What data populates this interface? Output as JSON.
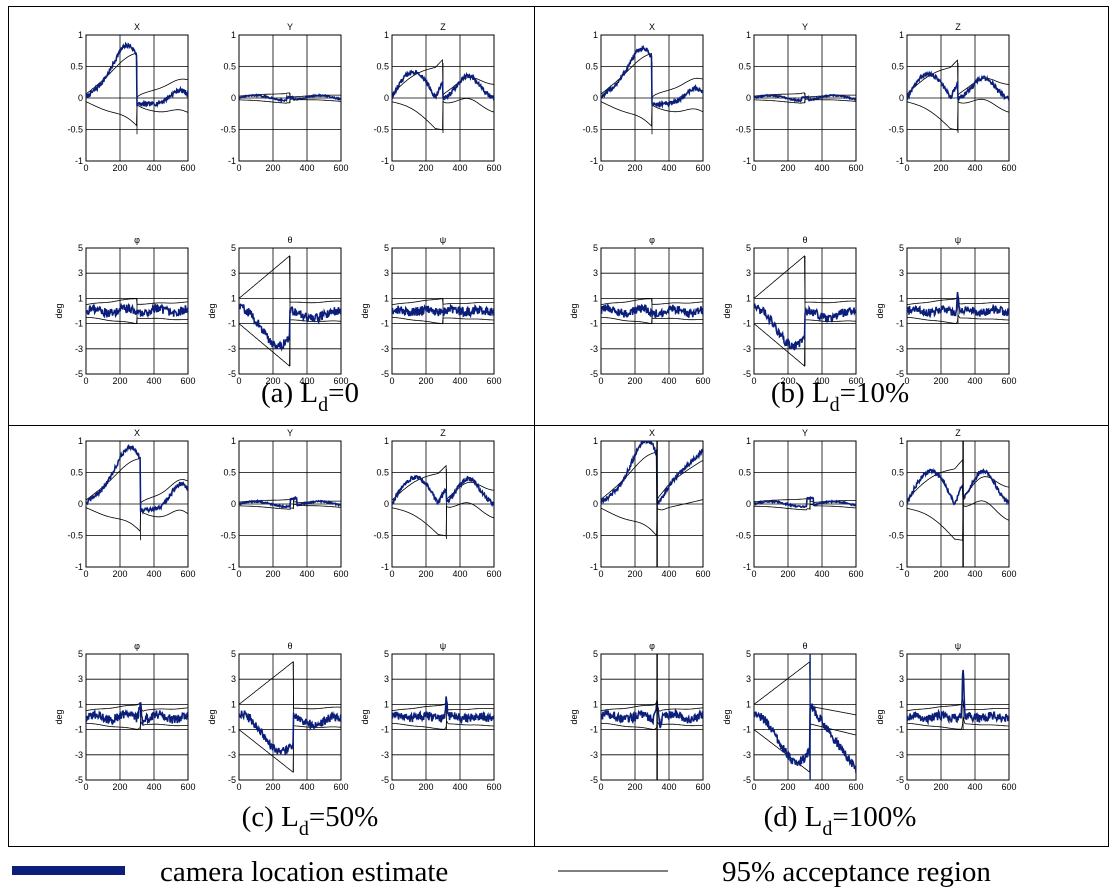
{
  "colors": {
    "estimate": "#0b1f7a",
    "region": "#000000",
    "grid": "#000000",
    "border": "#000000"
  },
  "panels": [
    {
      "caption_prefix": "(a) L",
      "caption_sub": "d",
      "caption_suffix": "=0"
    },
    {
      "caption_prefix": "(b) L",
      "caption_sub": "d",
      "caption_suffix": "=10%"
    },
    {
      "caption_prefix": "(c) L",
      "caption_sub": "d",
      "caption_suffix": "=50%"
    },
    {
      "caption_prefix": "(d) L",
      "caption_sub": "d",
      "caption_suffix": "=100%"
    }
  ],
  "legend": {
    "estimate_label": "camera location estimate",
    "region_label": "95% acceptance region"
  },
  "chart_data": {
    "type": "line",
    "panels": [
      "(a) Ld=0",
      "(b) Ld=10%",
      "(c) Ld=50%",
      "(d) Ld=100%"
    ],
    "x_ticks": [
      "0",
      "200",
      "400",
      "600"
    ],
    "xlim": [
      0,
      600
    ],
    "subplots": [
      {
        "title": "X",
        "ylabel": "",
        "ylim": [
          -1,
          1
        ],
        "y_ticks": [
          "1",
          "0.5",
          "0",
          "-0.5",
          "-1"
        ]
      },
      {
        "title": "Y",
        "ylabel": "",
        "ylim": [
          -1,
          1
        ],
        "y_ticks": [
          "1",
          "0.5",
          "0",
          "-0.5",
          "-1"
        ]
      },
      {
        "title": "Z",
        "ylabel": "",
        "ylim": [
          -1,
          1
        ],
        "y_ticks": [
          "1",
          "0.5",
          "0",
          "-0.5",
          "-1"
        ]
      },
      {
        "title": "φ",
        "ylabel": "deg",
        "ylim": [
          -5,
          5
        ],
        "y_ticks": [
          "5",
          "3",
          "1",
          "-1",
          "-3",
          "-5"
        ]
      },
      {
        "title": "θ",
        "ylabel": "deg",
        "ylim": [
          -5,
          5
        ],
        "y_ticks": [
          "5",
          "3",
          "1",
          "-1",
          "-3",
          "-5"
        ]
      },
      {
        "title": "ψ",
        "ylabel": "deg",
        "ylim": [
          -5,
          5
        ],
        "y_ticks": [
          "5",
          "3",
          "1",
          "-1",
          "-3",
          "-5"
        ]
      }
    ],
    "series": [
      {
        "name": "camera location estimate"
      },
      {
        "name": "95% acceptance region"
      }
    ],
    "grid": true
  }
}
